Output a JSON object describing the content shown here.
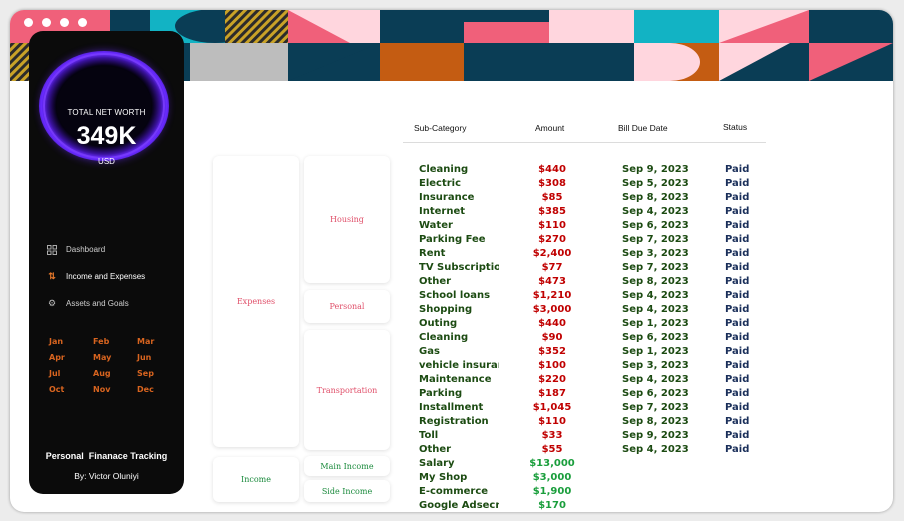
{
  "sidebar": {
    "net_worth_label": "TOTAL NET WORTH",
    "net_worth_value": "349K",
    "net_worth_unit": "USD",
    "nav": [
      {
        "label": "Dashboard",
        "icon": "grid-icon"
      },
      {
        "label": "Income and Expenses",
        "icon": "up-down-arrows-icon"
      },
      {
        "label": "Assets and Goals",
        "icon": "gears-icon"
      }
    ],
    "months": [
      "Jan",
      "Feb",
      "Mar",
      "Apr",
      "May",
      "Jun",
      "Jul",
      "Aug",
      "Sep",
      "Oct",
      "Nov",
      "Dec"
    ],
    "title": "Personal  Finanace Tracking",
    "author": "By: Victor Oluniyi"
  },
  "slicers": {
    "expenses": "Expenses",
    "income": "Income",
    "housing": "Housing",
    "personal": "Personal",
    "transportation": "Transportation",
    "main_income": "Main Income",
    "side_income": "Side Income"
  },
  "table": {
    "headers": {
      "sub": "Sub-Category",
      "amount": "Amount",
      "date": "Bill Due Date",
      "status": "Status"
    },
    "rows": [
      {
        "sub": "Cleaning",
        "amount": "$440",
        "date": "Sep 9, 2023",
        "status": "Paid",
        "type": "expense"
      },
      {
        "sub": "Electric",
        "amount": "$308",
        "date": "Sep 5, 2023",
        "status": "Paid",
        "type": "expense"
      },
      {
        "sub": "Insurance",
        "amount": "$85",
        "date": "Sep 8, 2023",
        "status": "Paid",
        "type": "expense"
      },
      {
        "sub": "Internet",
        "amount": "$385",
        "date": "Sep 4, 2023",
        "status": "Paid",
        "type": "expense"
      },
      {
        "sub": "Water",
        "amount": "$110",
        "date": "Sep 6, 2023",
        "status": "Paid",
        "type": "expense"
      },
      {
        "sub": "Parking Fee",
        "amount": "$270",
        "date": "Sep 7, 2023",
        "status": "Paid",
        "type": "expense"
      },
      {
        "sub": "Rent",
        "amount": "$2,400",
        "date": "Sep 3, 2023",
        "status": "Paid",
        "type": "expense"
      },
      {
        "sub": "TV Subscription",
        "amount": "$77",
        "date": "Sep 7, 2023",
        "status": "Paid",
        "type": "expense"
      },
      {
        "sub": "Other",
        "amount": "$473",
        "date": "Sep 8, 2023",
        "status": "Paid",
        "type": "expense"
      },
      {
        "sub": "School loans",
        "amount": "$1,210",
        "date": "Sep 4, 2023",
        "status": "Paid",
        "type": "expense"
      },
      {
        "sub": "Shopping",
        "amount": "$3,000",
        "date": "Sep 4, 2023",
        "status": "Paid",
        "type": "expense"
      },
      {
        "sub": "Outing",
        "amount": "$440",
        "date": "Sep 1, 2023",
        "status": "Paid",
        "type": "expense"
      },
      {
        "sub": "Cleaning",
        "amount": "$90",
        "date": "Sep 6, 2023",
        "status": "Paid",
        "type": "expense"
      },
      {
        "sub": "Gas",
        "amount": "$352",
        "date": "Sep 1, 2023",
        "status": "Paid",
        "type": "expense"
      },
      {
        "sub": "vehicle insurance",
        "amount": "$100",
        "date": "Sep 3, 2023",
        "status": "Paid",
        "type": "expense"
      },
      {
        "sub": "Maintenance",
        "amount": "$220",
        "date": "Sep 4, 2023",
        "status": "Paid",
        "type": "expense"
      },
      {
        "sub": "Parking",
        "amount": "$187",
        "date": "Sep 6, 2023",
        "status": "Paid",
        "type": "expense"
      },
      {
        "sub": "Installment",
        "amount": "$1,045",
        "date": "Sep 7, 2023",
        "status": "Paid",
        "type": "expense"
      },
      {
        "sub": "Registration",
        "amount": "$110",
        "date": "Sep 8, 2023",
        "status": "Paid",
        "type": "expense"
      },
      {
        "sub": "Toll",
        "amount": "$33",
        "date": "Sep 9, 2023",
        "status": "Paid",
        "type": "expense"
      },
      {
        "sub": "Other",
        "amount": "$55",
        "date": "Sep 4, 2023",
        "status": "Paid",
        "type": "expense"
      },
      {
        "sub": "Salary",
        "amount": "$13,000",
        "date": "",
        "status": "",
        "type": "income"
      },
      {
        "sub": "My Shop",
        "amount": "$3,000",
        "date": "",
        "status": "",
        "type": "income"
      },
      {
        "sub": "E-commerce",
        "amount": "$1,900",
        "date": "",
        "status": "",
        "type": "income"
      },
      {
        "sub": "Google Adsecne",
        "amount": "$170",
        "date": "",
        "status": "",
        "type": "income"
      }
    ]
  },
  "colors": {
    "teal": "#12b3c4",
    "navy": "#0a3d55",
    "coral": "#f0607a",
    "pink": "#ffd6de",
    "orange": "#c45c12",
    "grey": "#bdbdbd",
    "mustard": "#c9a227"
  }
}
